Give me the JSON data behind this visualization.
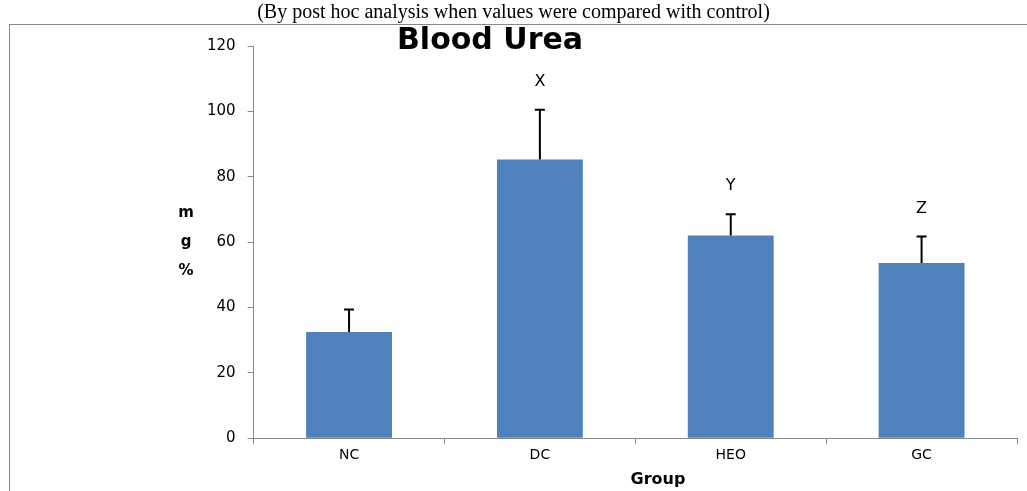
{
  "chart_data": {
    "type": "bar",
    "title": "Blood Urea",
    "subtitle": "(By post hoc analysis when values were compared with control)",
    "xlabel": "Group",
    "ylabel": "mg%",
    "categories": [
      "NC",
      "DC",
      "HEO",
      "GC"
    ],
    "values": [
      32.5,
      85.3,
      62,
      53.6
    ],
    "color": "#4f81bd",
    "errors": [
      [
        32.5,
        39.4
      ],
      [
        85.3,
        100.5
      ],
      [
        62,
        68.5
      ],
      [
        53.6,
        61.7
      ]
    ],
    "annotations": [
      "X",
      "Y",
      "Z"
    ],
    "ylim": [
      0,
      120
    ],
    "yticks": [
      0,
      20,
      40,
      60,
      80,
      100,
      120
    ],
    "grid": false,
    "legend": false
  }
}
